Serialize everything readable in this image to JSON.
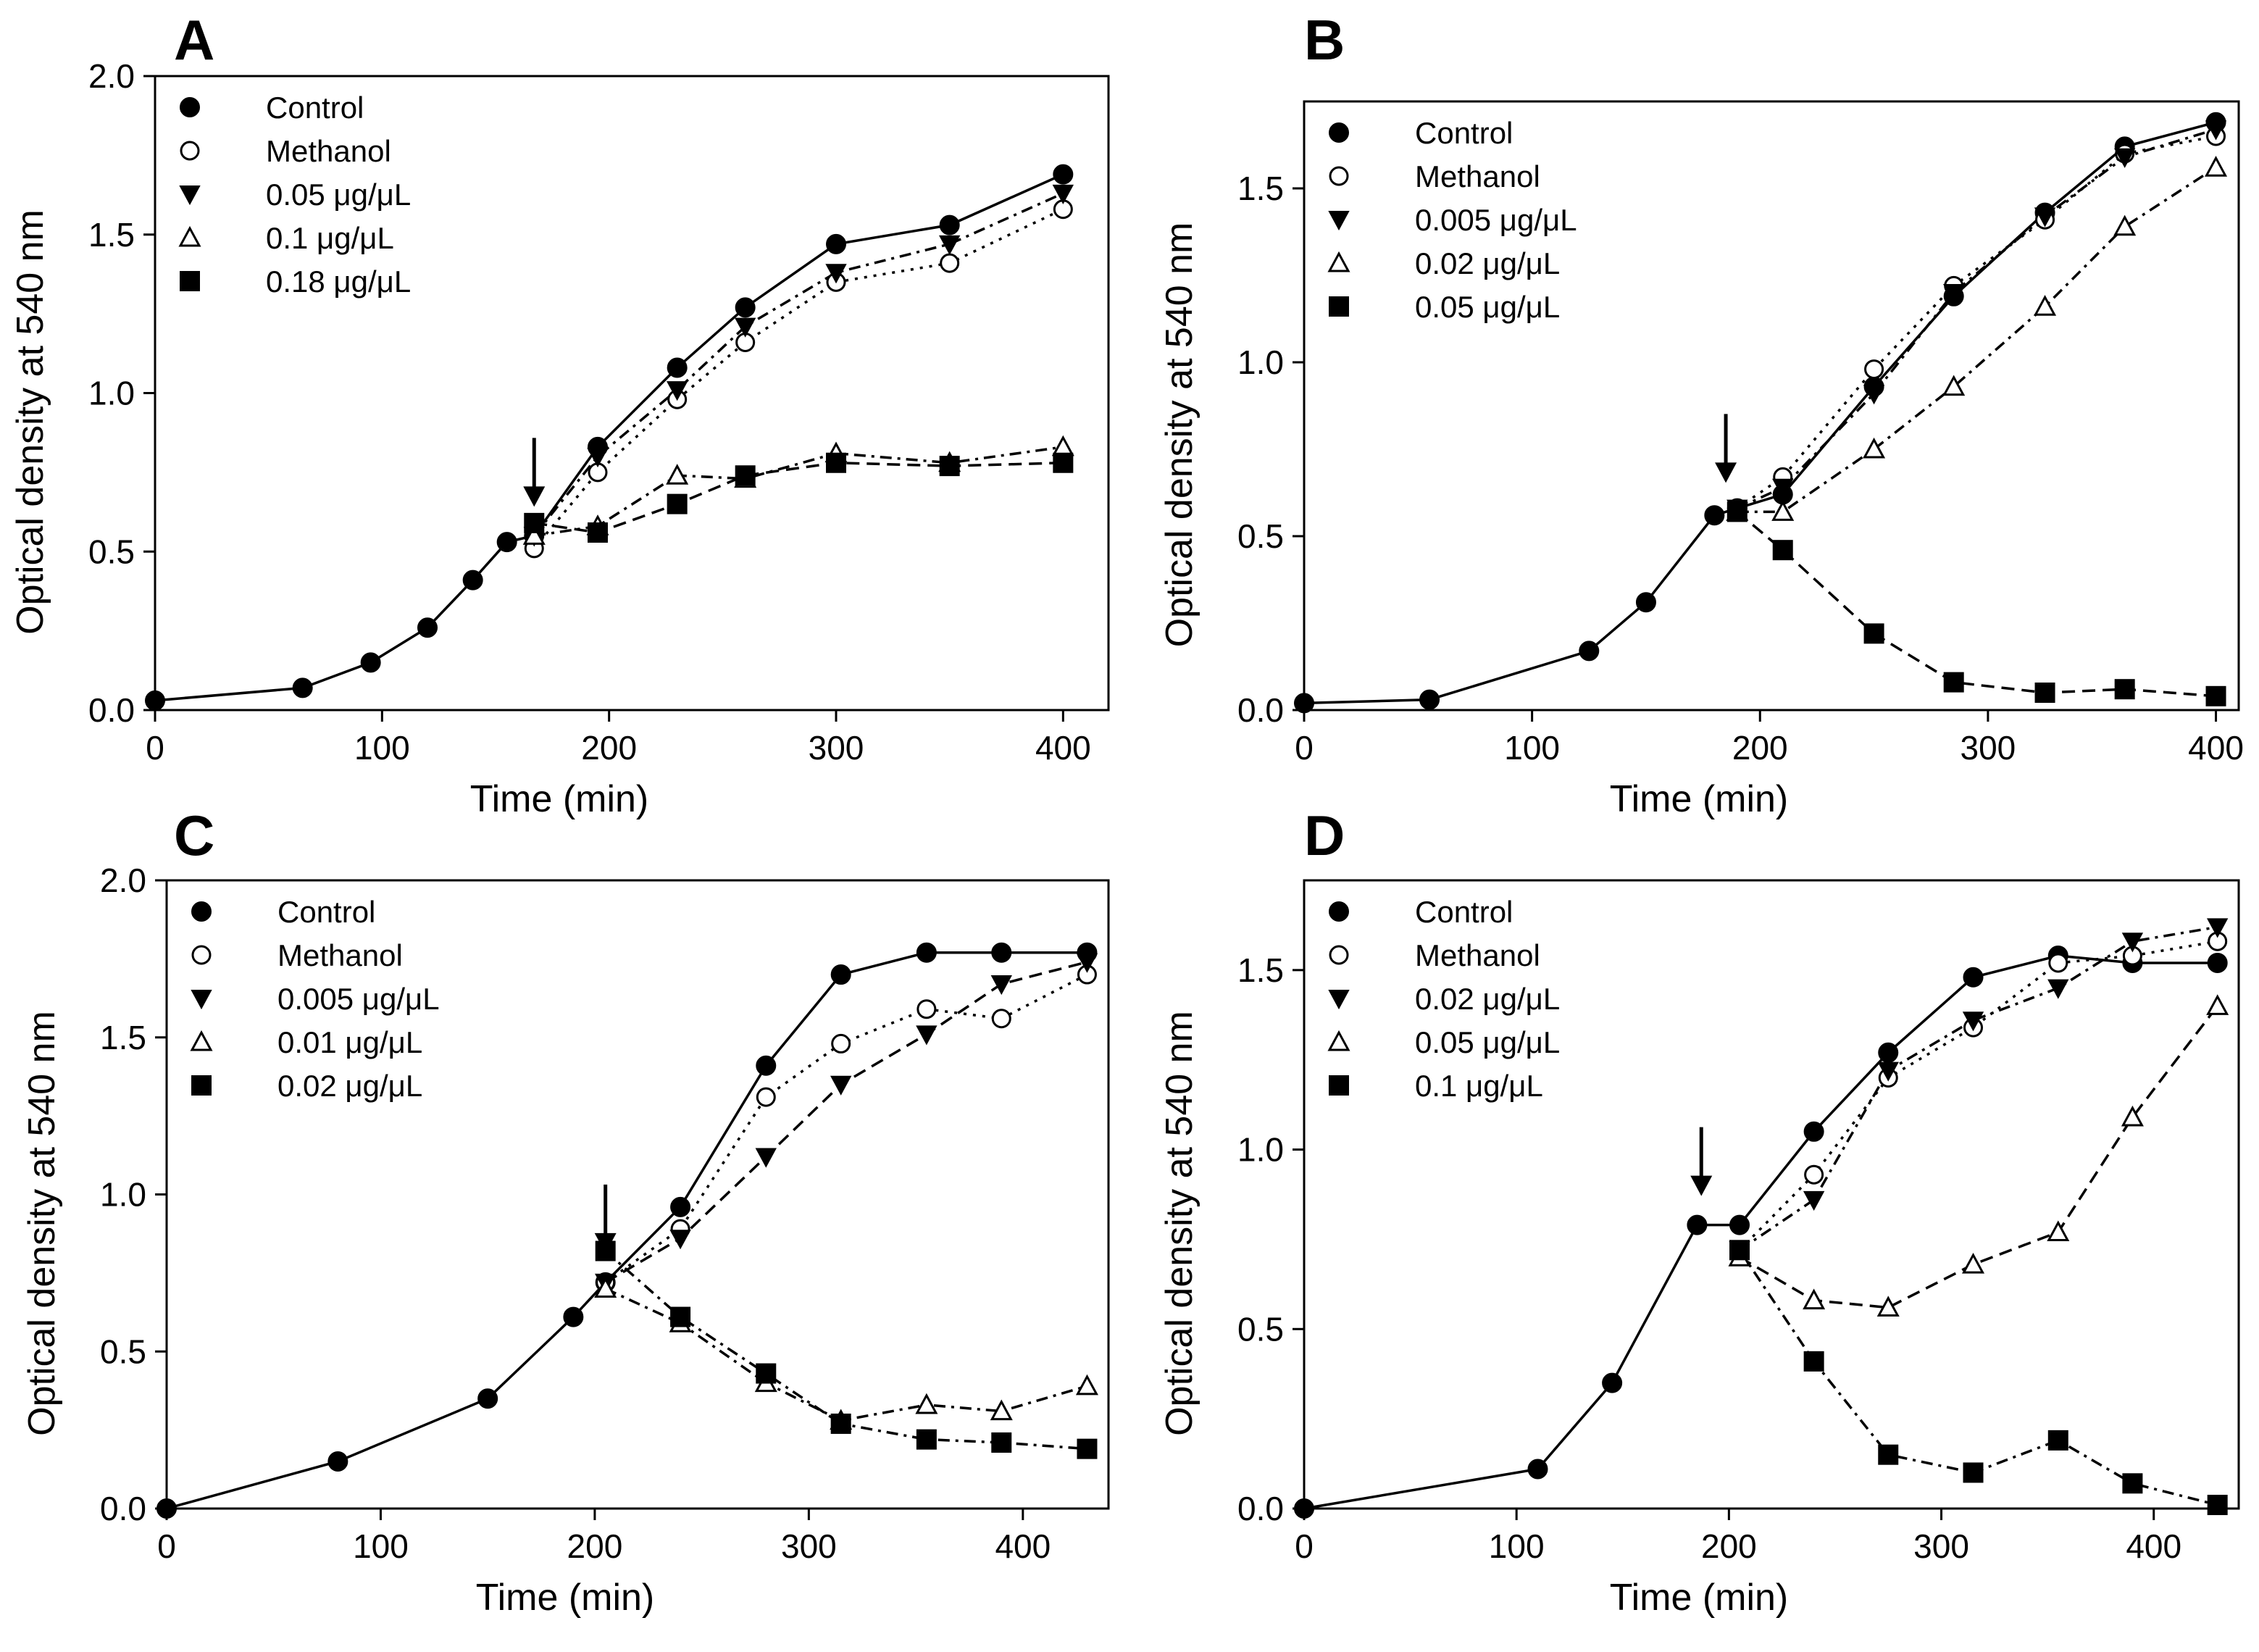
{
  "chart_data": [
    {
      "type": "line",
      "panel": "A",
      "xlabel": "Time (min)",
      "ylabel": "Optical density at 540 nm",
      "xlim": [
        0,
        420
      ],
      "ylim": [
        0,
        2.0
      ],
      "xticks": [
        "0",
        "100",
        "200",
        "300",
        "400"
      ],
      "yticks": [
        "0.0",
        "0.5",
        "1.0",
        "1.5",
        "2.0"
      ],
      "arrow_x": 167,
      "legend_position": "top-left",
      "series": [
        {
          "name": "Control",
          "marker": "filled-circle",
          "line": "solid",
          "x": [
            0,
            65,
            95,
            120,
            140,
            155,
            167,
            195,
            230,
            260,
            300,
            350,
            400
          ],
          "y": [
            0.03,
            0.07,
            0.15,
            0.26,
            0.41,
            0.53,
            0.55,
            0.83,
            1.08,
            1.27,
            1.47,
            1.53,
            1.69
          ]
        },
        {
          "name": "Methanol",
          "marker": "open-circle",
          "line": "dotted",
          "x": [
            167,
            195,
            230,
            260,
            300,
            350,
            400
          ],
          "y": [
            0.51,
            0.75,
            0.98,
            1.16,
            1.35,
            1.41,
            1.58
          ]
        },
        {
          "name": "0.05 μg/μL",
          "marker": "filled-triangle-down",
          "line": "dashdot",
          "x": [
            167,
            195,
            230,
            260,
            300,
            350,
            400
          ],
          "y": [
            0.55,
            0.8,
            1.01,
            1.21,
            1.38,
            1.47,
            1.63
          ]
        },
        {
          "name": "0.1 μg/μL",
          "marker": "open-triangle-up",
          "line": "dashdot",
          "x": [
            167,
            195,
            230,
            260,
            300,
            350,
            400
          ],
          "y": [
            0.55,
            0.58,
            0.74,
            0.73,
            0.81,
            0.78,
            0.83
          ]
        },
        {
          "name": "0.18 μg/μL",
          "marker": "filled-square",
          "line": "dashed",
          "x": [
            167,
            195,
            230,
            260,
            300,
            350,
            400
          ],
          "y": [
            0.59,
            0.56,
            0.65,
            0.74,
            0.78,
            0.77,
            0.78
          ]
        }
      ]
    },
    {
      "type": "line",
      "panel": "B",
      "xlabel": "Time (min)",
      "ylabel": "Optical density at 540 nm",
      "xlim": [
        0,
        410
      ],
      "ylim": [
        0,
        1.75
      ],
      "xticks": [
        "0",
        "100",
        "200",
        "300",
        "400"
      ],
      "yticks": [
        "0.0",
        "0.5",
        "1.0",
        "1.5"
      ],
      "arrow_x": 185,
      "legend_position": "top-left",
      "series": [
        {
          "name": "Control",
          "marker": "filled-circle",
          "line": "solid",
          "x": [
            0,
            55,
            125,
            150,
            180,
            190,
            210,
            250,
            285,
            325,
            360,
            400
          ],
          "y": [
            0.02,
            0.03,
            0.17,
            0.31,
            0.56,
            0.58,
            0.62,
            0.93,
            1.19,
            1.43,
            1.62,
            1.69
          ]
        },
        {
          "name": "Methanol",
          "marker": "open-circle",
          "line": "dotted",
          "x": [
            190,
            210,
            250,
            285,
            325,
            360,
            400
          ],
          "y": [
            0.58,
            0.67,
            0.98,
            1.22,
            1.41,
            1.6,
            1.65
          ]
        },
        {
          "name": "0.005 μg/μL",
          "marker": "filled-triangle-down",
          "line": "dashdot",
          "x": [
            190,
            210,
            250,
            285,
            325,
            360,
            400
          ],
          "y": [
            0.58,
            0.64,
            0.91,
            1.2,
            1.42,
            1.59,
            1.67
          ]
        },
        {
          "name": "0.02 μg/μL",
          "marker": "open-triangle-up",
          "line": "dashdot",
          "x": [
            190,
            210,
            250,
            285,
            325,
            360,
            400
          ],
          "y": [
            0.57,
            0.57,
            0.75,
            0.93,
            1.16,
            1.39,
            1.56
          ]
        },
        {
          "name": "0.05 μg/μL",
          "marker": "filled-square",
          "line": "dashed",
          "x": [
            190,
            210,
            250,
            285,
            325,
            360,
            400
          ],
          "y": [
            0.57,
            0.46,
            0.22,
            0.08,
            0.05,
            0.06,
            0.04
          ]
        }
      ]
    },
    {
      "type": "line",
      "panel": "C",
      "xlabel": "Time (min)",
      "ylabel": "Optical density at 540 nm",
      "xlim": [
        0,
        440
      ],
      "ylim": [
        0,
        2.0
      ],
      "xticks": [
        "0",
        "100",
        "200",
        "300",
        "400"
      ],
      "yticks": [
        "0.0",
        "0.5",
        "1.0",
        "1.5",
        "2.0"
      ],
      "arrow_x": 205,
      "legend_position": "top-left",
      "series": [
        {
          "name": "Control",
          "marker": "filled-circle",
          "line": "solid",
          "x": [
            0,
            80,
            150,
            190,
            205,
            240,
            280,
            315,
            355,
            390,
            430
          ],
          "y": [
            0.0,
            0.15,
            0.35,
            0.61,
            0.72,
            0.96,
            1.41,
            1.7,
            1.77,
            1.77,
            1.77
          ]
        },
        {
          "name": "Methanol",
          "marker": "open-circle",
          "line": "dotted",
          "x": [
            205,
            240,
            280,
            315,
            355,
            390,
            430
          ],
          "y": [
            0.72,
            0.89,
            1.31,
            1.48,
            1.59,
            1.56,
            1.7
          ]
        },
        {
          "name": "0.005 μg/μL",
          "marker": "filled-triangle-down",
          "line": "dashed",
          "x": [
            205,
            240,
            280,
            315,
            355,
            390,
            430
          ],
          "y": [
            0.72,
            0.86,
            1.12,
            1.35,
            1.51,
            1.67,
            1.74
          ]
        },
        {
          "name": "0.01 μg/μL",
          "marker": "open-triangle-up",
          "line": "dashdot",
          "x": [
            205,
            240,
            280,
            315,
            355,
            390,
            430
          ],
          "y": [
            0.7,
            0.59,
            0.4,
            0.28,
            0.33,
            0.31,
            0.39
          ]
        },
        {
          "name": "0.02 μg/μL",
          "marker": "filled-square",
          "line": "dashdot",
          "x": [
            205,
            240,
            280,
            315,
            355,
            390,
            430
          ],
          "y": [
            0.82,
            0.61,
            0.43,
            0.27,
            0.22,
            0.21,
            0.19
          ]
        }
      ]
    },
    {
      "type": "line",
      "panel": "D",
      "xlabel": "Time (min)",
      "ylabel": "Optical density at 540 nm",
      "xlim": [
        0,
        440
      ],
      "ylim": [
        0,
        1.75
      ],
      "xticks": [
        "0",
        "100",
        "200",
        "300",
        "400"
      ],
      "yticks": [
        "0.0",
        "0.5",
        "1.0",
        "1.5"
      ],
      "arrow_x": 187,
      "legend_position": "top-left",
      "series": [
        {
          "name": "Control",
          "marker": "filled-circle",
          "line": "solid",
          "x": [
            0,
            110,
            145,
            185,
            205,
            240,
            275,
            315,
            355,
            390,
            430
          ],
          "y": [
            0.0,
            0.11,
            0.35,
            0.79,
            0.79,
            1.05,
            1.27,
            1.48,
            1.54,
            1.52,
            1.52
          ]
        },
        {
          "name": "Methanol",
          "marker": "open-circle",
          "line": "dotted",
          "x": [
            205,
            240,
            275,
            315,
            355,
            390,
            430
          ],
          "y": [
            0.72,
            0.93,
            1.2,
            1.34,
            1.52,
            1.54,
            1.58
          ]
        },
        {
          "name": "0.02 μg/μL",
          "marker": "filled-triangle-down",
          "line": "dashdot",
          "x": [
            205,
            240,
            275,
            315,
            355,
            390,
            430
          ],
          "y": [
            0.72,
            0.86,
            1.22,
            1.36,
            1.45,
            1.58,
            1.62
          ]
        },
        {
          "name": "0.05 μg/μL",
          "marker": "open-triangle-up",
          "line": "dashed",
          "x": [
            205,
            240,
            275,
            315,
            355,
            390,
            430
          ],
          "y": [
            0.7,
            0.58,
            0.56,
            0.68,
            0.77,
            1.09,
            1.4
          ]
        },
        {
          "name": "0.1 μg/μL",
          "marker": "filled-square",
          "line": "dashdot",
          "x": [
            205,
            240,
            275,
            315,
            355,
            390,
            430
          ],
          "y": [
            0.72,
            0.41,
            0.15,
            0.1,
            0.19,
            0.07,
            0.01
          ]
        }
      ]
    }
  ]
}
